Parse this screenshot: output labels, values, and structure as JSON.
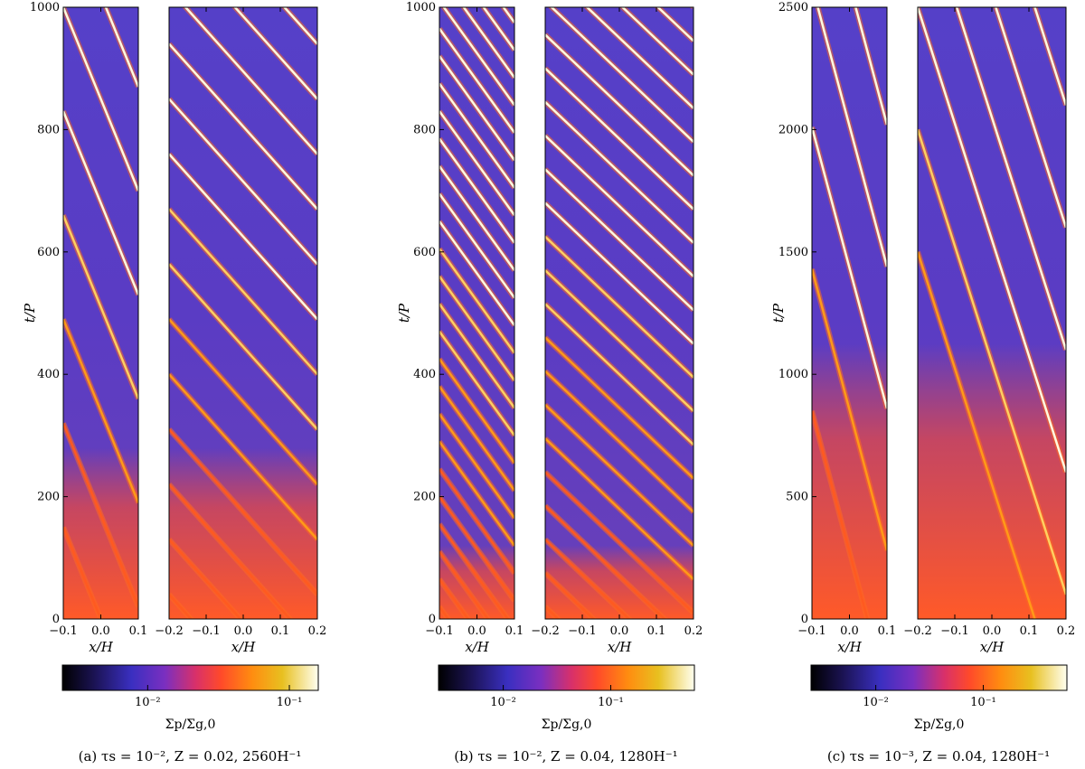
{
  "chart_data": [
    {
      "type": "heatmap",
      "caption": "(a) τs = 10⁻², Z = 0.02, 2560H⁻¹",
      "ylabel": "t/P",
      "ylim": [
        0,
        1000
      ],
      "yticks": [
        "0",
        "200",
        "400",
        "600",
        "800",
        "1000"
      ],
      "colorbar": {
        "label": "Σp/Σg,0",
        "ticks": [
          "10⁻²",
          "10⁻¹"
        ],
        "range": [
          0.0025,
          0.16
        ]
      },
      "panels": [
        {
          "xlabel": "x/H",
          "xlim": [
            -0.1,
            0.1
          ],
          "xticks": [
            "−0.1",
            "0.0",
            "0.1"
          ],
          "first_filament_time": 150,
          "filament_spacing": 170,
          "drift_period": 300
        },
        {
          "xlabel": "x/H",
          "xlim": [
            -0.2,
            0.2
          ],
          "xticks": [
            "−0.2",
            "−0.1",
            "0.0",
            "0.1",
            "0.2"
          ],
          "first_filament_time": 40,
          "filament_spacing": 90,
          "drift_period": 270
        }
      ]
    },
    {
      "type": "heatmap",
      "caption": "(b) τs = 10⁻², Z = 0.04, 1280H⁻¹",
      "ylabel": "t/P",
      "ylim": [
        0,
        1000
      ],
      "yticks": [
        "0",
        "200",
        "400",
        "600",
        "800",
        "1000"
      ],
      "colorbar": {
        "label": "Σp/Σg,0",
        "ticks": [
          "10⁻²",
          "10⁻¹"
        ],
        "range": [
          0.0025,
          0.6
        ]
      },
      "panels": [
        {
          "xlabel": "x/H",
          "xlim": [
            -0.1,
            0.1
          ],
          "xticks": [
            "−0.1",
            "0.0",
            "0.1"
          ],
          "first_filament_time": 20,
          "filament_spacing": 45,
          "drift_period": 170
        },
        {
          "xlabel": "x/H",
          "xlim": [
            -0.2,
            0.2
          ],
          "xticks": [
            "−0.2",
            "−0.1",
            "0.0",
            "0.1",
            "0.2"
          ],
          "first_filament_time": 20,
          "filament_spacing": 55,
          "drift_period": 230
        }
      ]
    },
    {
      "type": "heatmap",
      "caption": "(c) τs = 10⁻³, Z = 0.04, 1280H⁻¹",
      "ylabel": "t/P",
      "ylim": [
        0,
        2500
      ],
      "yticks": [
        "0",
        "500",
        "1000",
        "1500",
        "2000",
        "2500"
      ],
      "colorbar": {
        "label": "Σp/Σg,0",
        "ticks": [
          "10⁻²",
          "10⁻¹"
        ],
        "range": [
          0.0025,
          0.6
        ]
      },
      "panels": [
        {
          "xlabel": "x/H",
          "xlim": [
            -0.1,
            0.1
          ],
          "xticks": [
            "−0.1",
            "0.0",
            "0.1"
          ],
          "first_filament_time": 850,
          "filament_spacing": 580,
          "drift_period": 1150
        },
        {
          "xlabel": "x/H",
          "xlim": [
            -0.2,
            0.2
          ],
          "xticks": [
            "−0.2",
            "−0.1",
            "0.0",
            "0.1",
            "0.2"
          ],
          "first_filament_time": 1500,
          "filament_spacing": 500,
          "drift_period": 1900
        }
      ]
    }
  ]
}
